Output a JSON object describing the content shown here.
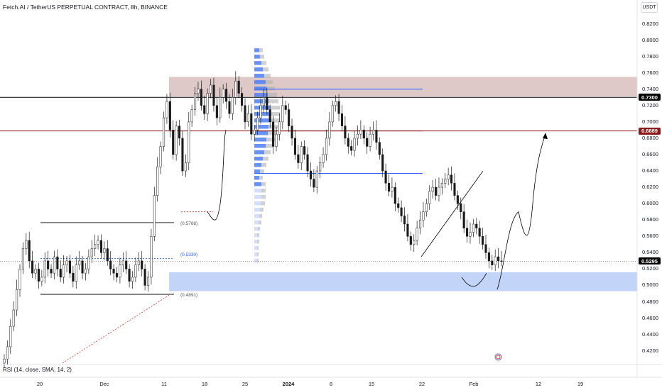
{
  "header": {
    "title": "Fetch.AI / TetherUS PERPETUAL CONTRACT, 8h, BINANCE",
    "currency": "USDT"
  },
  "indicator": {
    "rsi_label": "RSI (14, close, SMA, 14, 2)"
  },
  "colors": {
    "up": "#26a69a",
    "candle": "#1a1a1a",
    "supply_zone": "#c49a9a",
    "demand_zone": "#8fb0f0",
    "profile_blue": "#4f7ff5",
    "profile_gray": "#b0b0b0",
    "line_blue": "#2962ff",
    "line_red": "#8b1a1a",
    "badge_black": "#000000",
    "badge_red": "#8b1a1a"
  },
  "price_badges": [
    {
      "value": "0.7300",
      "price": 0.73,
      "color": "#000000"
    },
    {
      "value": "0.6889",
      "price": 0.6889,
      "color": "#8b1a1a"
    },
    {
      "value": "0.5295",
      "price": 0.5295,
      "color": "#000000"
    }
  ],
  "annotations": [
    {
      "text": "(0.5768)",
      "price": 0.5768
    },
    {
      "text": "(0.5330)",
      "price": 0.533
    },
    {
      "text": "(0.4891)",
      "price": 0.4891
    }
  ],
  "chart_data": {
    "type": "candlestick",
    "title": "Fetch.AI / TetherUS PERPETUAL CONTRACT, 8h, BINANCE",
    "y_axis_ticks": [
      "0.8200",
      "0.8000",
      "0.7800",
      "0.7600",
      "0.7400",
      "0.7200",
      "0.7000",
      "0.6800",
      "0.6600",
      "0.6400",
      "0.6200",
      "0.6000",
      "0.5800",
      "0.5600",
      "0.5400",
      "0.5200",
      "0.5000",
      "0.4800",
      "0.4600",
      "0.4400",
      "0.4200"
    ],
    "ylim": [
      0.405,
      0.83
    ],
    "x_axis_ticks": [
      "20",
      "Dec",
      "11",
      "18",
      "25",
      "2024",
      "8",
      "15",
      "22",
      "Feb",
      "12",
      "19"
    ],
    "last_price": 0.5295,
    "horizontal_levels": [
      {
        "price": 0.73,
        "color": "#000000"
      },
      {
        "price": 0.6889,
        "color": "#8b1a1a"
      }
    ],
    "zones": [
      {
        "name": "supply",
        "top": 0.755,
        "bottom": 0.731
      },
      {
        "name": "demand",
        "top": 0.516,
        "bottom": 0.493
      }
    ],
    "close_path": [
      0.41,
      0.425,
      0.45,
      0.47,
      0.495,
      0.52,
      0.545,
      0.555,
      0.53,
      0.515,
      0.52,
      0.505,
      0.51,
      0.53,
      0.52,
      0.515,
      0.535,
      0.52,
      0.51,
      0.525,
      0.53,
      0.515,
      0.505,
      0.525,
      0.53,
      0.515,
      0.52,
      0.535,
      0.545,
      0.55,
      0.555,
      0.54,
      0.545,
      0.53,
      0.52,
      0.515,
      0.51,
      0.525,
      0.53,
      0.52,
      0.505,
      0.51,
      0.525,
      0.53,
      0.52,
      0.5,
      0.51,
      0.56,
      0.61,
      0.645,
      0.67,
      0.705,
      0.725,
      0.69,
      0.66,
      0.695,
      0.68,
      0.64,
      0.65,
      0.7,
      0.715,
      0.735,
      0.74,
      0.72,
      0.71,
      0.735,
      0.745,
      0.72,
      0.705,
      0.73,
      0.74,
      0.725,
      0.71,
      0.73,
      0.75,
      0.735,
      0.72,
      0.7,
      0.71,
      0.685,
      0.69,
      0.705,
      0.72,
      0.73,
      0.715,
      0.7,
      0.67,
      0.685,
      0.7,
      0.72,
      0.715,
      0.695,
      0.68,
      0.66,
      0.65,
      0.67,
      0.66,
      0.64,
      0.63,
      0.62,
      0.64,
      0.65,
      0.66,
      0.68,
      0.7,
      0.72,
      0.725,
      0.71,
      0.695,
      0.68,
      0.67,
      0.665,
      0.68,
      0.685,
      0.69,
      0.68,
      0.67,
      0.685,
      0.69,
      0.675,
      0.66,
      0.64,
      0.625,
      0.615,
      0.62,
      0.6,
      0.595,
      0.585,
      0.575,
      0.56,
      0.55,
      0.555,
      0.57,
      0.58,
      0.59,
      0.6,
      0.615,
      0.62,
      0.61,
      0.62,
      0.625,
      0.63,
      0.635,
      0.625,
      0.61,
      0.6,
      0.59,
      0.57,
      0.56,
      0.565,
      0.575,
      0.57,
      0.56,
      0.55,
      0.54,
      0.53,
      0.525,
      0.535,
      0.53,
      0.5295
    ]
  }
}
